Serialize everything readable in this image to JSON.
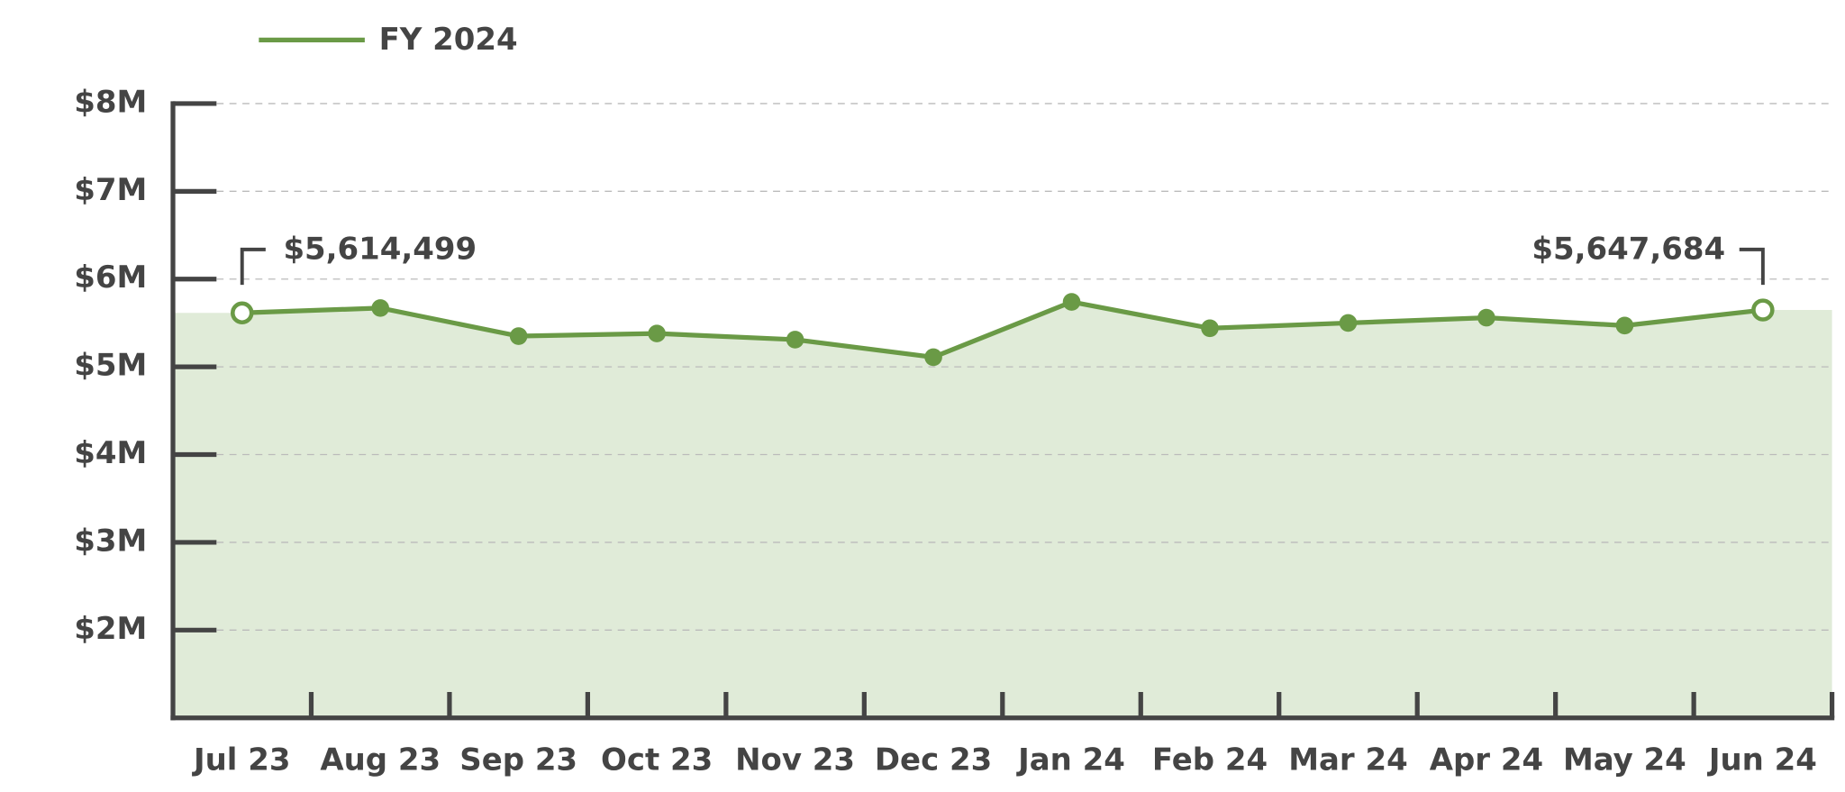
{
  "chart_data": {
    "type": "line",
    "categories": [
      "Jul 23",
      "Aug 23",
      "Sep 23",
      "Oct 23",
      "Nov 23",
      "Dec 23",
      "Jan 24",
      "Feb 24",
      "Mar 24",
      "Apr 24",
      "May 24",
      "Jun 24"
    ],
    "series": [
      {
        "name": "FY 2024",
        "color": "#6a9a46",
        "values": [
          5614499,
          5670000,
          5350000,
          5380000,
          5310000,
          5110000,
          5740000,
          5440000,
          5500000,
          5560000,
          5470000,
          5647684
        ],
        "value_labels": [
          "$5,614,499",
          null,
          null,
          null,
          null,
          null,
          null,
          null,
          null,
          null,
          null,
          "$5,647,684"
        ]
      }
    ],
    "ylim": [
      1000000,
      8000000
    ],
    "yticks": [
      {
        "value": 2000000,
        "label": "$2M"
      },
      {
        "value": 3000000,
        "label": "$3M"
      },
      {
        "value": 4000000,
        "label": "$4M"
      },
      {
        "value": 5000000,
        "label": "$5M"
      },
      {
        "value": 6000000,
        "label": "$6M"
      },
      {
        "value": 7000000,
        "label": "$7M"
      },
      {
        "value": 8000000,
        "label": "$8M"
      }
    ],
    "grid": true,
    "area_color": "#e0ebd8"
  }
}
